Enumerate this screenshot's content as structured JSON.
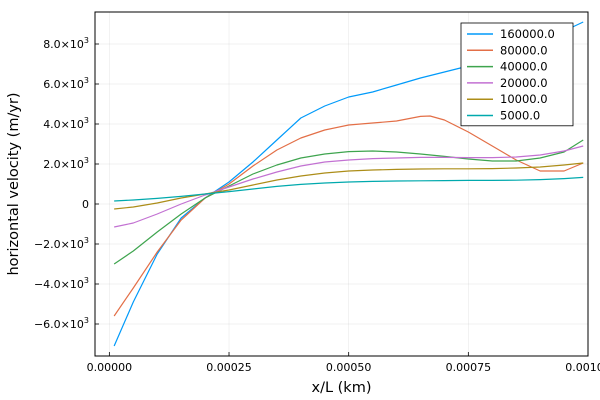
{
  "chart_data": {
    "type": "line",
    "title": "",
    "xlabel": "x/L (km)",
    "ylabel": "horizontal velocity (m/yr)",
    "xlim": [
      -3e-05,
      0.001
    ],
    "ylim": [
      -7600,
      9600
    ],
    "x_ticks": [
      0,
      0.00025,
      0.0005,
      0.00075,
      0.001
    ],
    "x_tick_labels": [
      "0.00000",
      "0.00025",
      "0.00050",
      "0.00075",
      "0.00100"
    ],
    "y_ticks": [
      -6000,
      -4000,
      -2000,
      0,
      2000,
      4000,
      6000,
      8000
    ],
    "y_tick_labels": [
      {
        "mant": "−6.0×10",
        "exp": "3"
      },
      {
        "mant": "−4.0×10",
        "exp": "3"
      },
      {
        "mant": "−2.0×10",
        "exp": "3"
      },
      {
        "mant": "0",
        "exp": ""
      },
      {
        "mant": "2.0×10",
        "exp": "3"
      },
      {
        "mant": "4.0×10",
        "exp": "3"
      },
      {
        "mant": "6.0×10",
        "exp": "3"
      },
      {
        "mant": "8.0×10",
        "exp": "3"
      }
    ],
    "grid": true,
    "legend_position": "top-right",
    "series": [
      {
        "name": "160000.0",
        "color": "#009AFA",
        "x": [
          1e-05,
          5e-05,
          0.0001,
          0.00015,
          0.0002,
          0.00025,
          0.0003,
          0.00035,
          0.0004,
          0.00045,
          0.0005,
          0.00055,
          0.0006,
          0.00065,
          0.0007,
          0.00075,
          0.0008,
          0.00085,
          0.0009,
          0.00095,
          0.00099
        ],
        "y": [
          -7100,
          -4900,
          -2500,
          -700,
          300,
          1100,
          2100,
          3200,
          4300,
          4900,
          5350,
          5600,
          5950,
          6300,
          6600,
          6900,
          7300,
          7700,
          8150,
          8650,
          9100
        ]
      },
      {
        "name": "80000.0",
        "color": "#E36F47",
        "x": [
          1e-05,
          5e-05,
          0.0001,
          0.00015,
          0.0002,
          0.00025,
          0.0003,
          0.00035,
          0.0004,
          0.00045,
          0.0005,
          0.00055,
          0.0006,
          0.00065,
          0.00067,
          0.0007,
          0.00075,
          0.0008,
          0.00085,
          0.0009,
          0.00095,
          0.00099
        ],
        "y": [
          -5600,
          -4200,
          -2400,
          -800,
          300,
          1000,
          1900,
          2700,
          3300,
          3700,
          3950,
          4050,
          4150,
          4380,
          4400,
          4200,
          3600,
          2900,
          2200,
          1650,
          1650,
          2050
        ]
      },
      {
        "name": "40000.0",
        "color": "#3EA44E",
        "x": [
          1e-05,
          5e-05,
          0.0001,
          0.00015,
          0.0002,
          0.00025,
          0.0003,
          0.00035,
          0.0004,
          0.00045,
          0.0005,
          0.00055,
          0.0006,
          0.00065,
          0.0007,
          0.00075,
          0.0008,
          0.00085,
          0.0009,
          0.00095,
          0.00099
        ],
        "y": [
          -3000,
          -2350,
          -1400,
          -500,
          300,
          900,
          1500,
          1950,
          2300,
          2500,
          2620,
          2650,
          2600,
          2500,
          2380,
          2250,
          2150,
          2150,
          2300,
          2600,
          3200
        ]
      },
      {
        "name": "20000.0",
        "color": "#C271D2",
        "x": [
          1e-05,
          5e-05,
          0.0001,
          0.00015,
          0.0002,
          0.00025,
          0.0003,
          0.00035,
          0.0004,
          0.00045,
          0.0005,
          0.00055,
          0.0006,
          0.00065,
          0.0007,
          0.00075,
          0.0008,
          0.00085,
          0.0009,
          0.00095,
          0.00099
        ],
        "y": [
          -1150,
          -950,
          -500,
          0,
          450,
          850,
          1250,
          1600,
          1900,
          2100,
          2200,
          2270,
          2300,
          2330,
          2330,
          2320,
          2320,
          2350,
          2450,
          2650,
          2900
        ]
      },
      {
        "name": "10000.0",
        "color": "#AC8D18",
        "x": [
          1e-05,
          5e-05,
          0.0001,
          0.00015,
          0.0002,
          0.00025,
          0.0003,
          0.00035,
          0.0004,
          0.00045,
          0.0005,
          0.00055,
          0.0006,
          0.00065,
          0.0007,
          0.00075,
          0.0008,
          0.00085,
          0.0009,
          0.00095,
          0.00099
        ],
        "y": [
          -250,
          -150,
          50,
          300,
          500,
          700,
          950,
          1200,
          1400,
          1550,
          1650,
          1700,
          1730,
          1750,
          1760,
          1760,
          1770,
          1800,
          1850,
          1950,
          2050
        ]
      },
      {
        "name": "5000.0",
        "color": "#00A9AD",
        "x": [
          1e-05,
          5e-05,
          0.0001,
          0.00015,
          0.0002,
          0.00025,
          0.0003,
          0.00035,
          0.0004,
          0.00045,
          0.0005,
          0.00055,
          0.0006,
          0.00065,
          0.0007,
          0.00075,
          0.0008,
          0.00085,
          0.0009,
          0.00095,
          0.00099
        ],
        "y": [
          150,
          200,
          280,
          380,
          500,
          620,
          750,
          880,
          980,
          1050,
          1100,
          1130,
          1150,
          1160,
          1170,
          1180,
          1180,
          1190,
          1220,
          1270,
          1330
        ]
      }
    ]
  }
}
